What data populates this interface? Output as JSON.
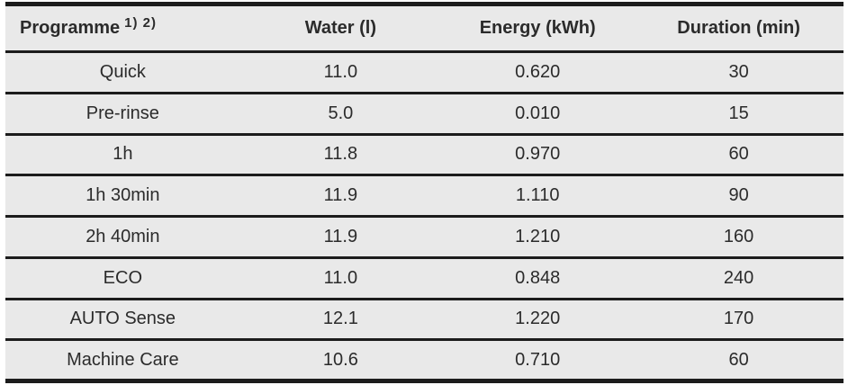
{
  "table": {
    "headers": {
      "programme": "Programme",
      "programme_superscript": "1) 2)",
      "water": "Water (l)",
      "energy": "Energy (kWh)",
      "duration": "Duration (min)"
    },
    "rows": [
      {
        "programme": "Quick",
        "water": "11.0",
        "energy": "0.620",
        "duration": "30"
      },
      {
        "programme": "Pre-rinse",
        "water": "5.0",
        "energy": "0.010",
        "duration": "15"
      },
      {
        "programme": "1h",
        "water": "11.8",
        "energy": "0.970",
        "duration": "60"
      },
      {
        "programme": "1h 30min",
        "water": "11.9",
        "energy": "1.110",
        "duration": "90"
      },
      {
        "programme": "2h 40min",
        "water": "11.9",
        "energy": "1.210",
        "duration": "160"
      },
      {
        "programme": "ECO",
        "water": "11.0",
        "energy": "0.848",
        "duration": "240"
      },
      {
        "programme": "AUTO Sense",
        "water": "12.1",
        "energy": "1.220",
        "duration": "170"
      },
      {
        "programme": "Machine Care",
        "water": "10.6",
        "energy": "0.710",
        "duration": "60"
      }
    ]
  },
  "colors": {
    "cell_background": "#e9e9e9",
    "border": "#1c1c1c",
    "text": "#2b2b2b",
    "page_background": "#ffffff"
  }
}
